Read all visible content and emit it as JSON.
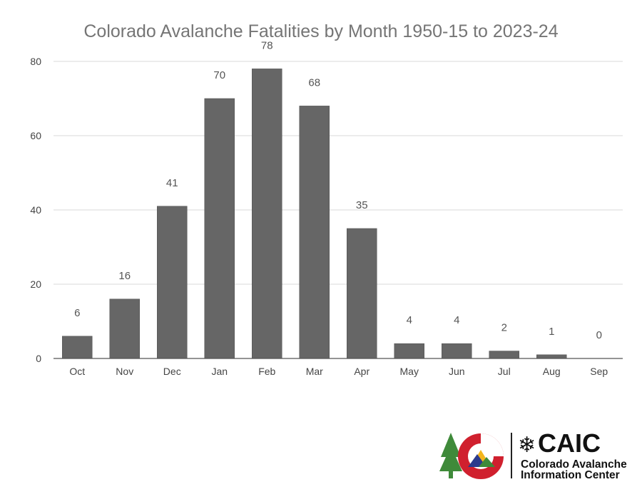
{
  "chart_data": {
    "type": "bar",
    "title": "Colorado Avalanche Fatalities by Month 1950-15 to 2023-24",
    "xlabel": "",
    "ylabel": "",
    "categories": [
      "Oct",
      "Nov",
      "Dec",
      "Jan",
      "Feb",
      "Mar",
      "Apr",
      "May",
      "Jun",
      "Jul",
      "Aug",
      "Sep"
    ],
    "values": [
      6,
      16,
      41,
      70,
      78,
      68,
      35,
      4,
      4,
      2,
      1,
      0
    ],
    "ylim": [
      0,
      80
    ],
    "yticks": [
      0,
      20,
      40,
      60,
      80
    ],
    "grid": true,
    "legend": "none",
    "bar_color": "#666666"
  },
  "logo": {
    "icon": "colorado-c-mountain-tree-icon",
    "snowflake_icon": "snowflake-icon",
    "acronym": "CAIC",
    "name_line1": "Colorado Avalanche",
    "name_line2": "Information Center",
    "colors": {
      "red": "#d0202e",
      "blue": "#2b3a8c",
      "gold": "#f3b51c",
      "green": "#3f8a3a"
    }
  }
}
